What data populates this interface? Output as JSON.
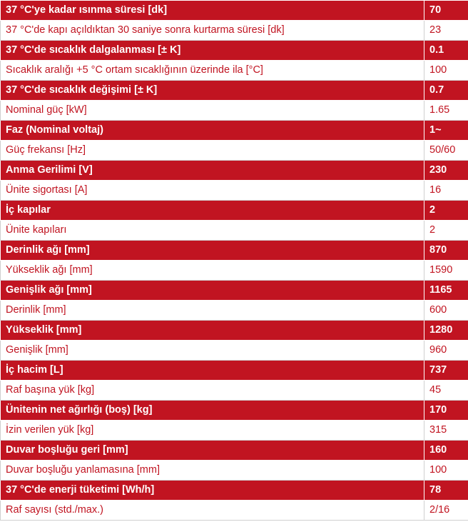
{
  "colors": {
    "accent_red": "#c11421",
    "row_light": "#ffffff",
    "text_on_red": "#ffffff"
  },
  "spec_table": {
    "rows": [
      {
        "label": "37 °C'ye kadar ısınma süresi [dk]",
        "value": "70"
      },
      {
        "label": "37 °C'de kapı açıldıktan 30 saniye sonra kurtarma süresi [dk]",
        "value": "23"
      },
      {
        "label": "37 °C'de sıcaklık dalgalanması [± K]",
        "value": "0.1"
      },
      {
        "label": "Sıcaklık aralığı +5 °C ortam sıcaklığının üzerinde ila [°C]",
        "value": "100"
      },
      {
        "label": "37 °C'de sıcaklık değişimi [± K]",
        "value": "0.7"
      },
      {
        "label": "Nominal güç [kW]",
        "value": "1.65"
      },
      {
        "label": "Faz (Nominal voltaj)",
        "value": "1~"
      },
      {
        "label": "Güç frekansı [Hz]",
        "value": "50/60"
      },
      {
        "label": "Anma Gerilimi [V]",
        "value": "230"
      },
      {
        "label": "Ünite sigortası [A]",
        "value": "16"
      },
      {
        "label": "İç kapılar",
        "value": "2"
      },
      {
        "label": "Ünite kapıları",
        "value": "2"
      },
      {
        "label": "Derinlik ağı [mm]",
        "value": "870"
      },
      {
        "label": "Yükseklik ağı [mm]",
        "value": "1590"
      },
      {
        "label": "Genişlik ağı [mm]",
        "value": "1165"
      },
      {
        "label": "Derinlik [mm]",
        "value": "600"
      },
      {
        "label": "Yükseklik [mm]",
        "value": "1280"
      },
      {
        "label": "Genişlik [mm]",
        "value": "960"
      },
      {
        "label": "İç hacim [L]",
        "value": "737"
      },
      {
        "label": "Raf başına yük [kg]",
        "value": "45"
      },
      {
        "label": "Ünitenin net ağırlığı (boş) [kg]",
        "value": "170"
      },
      {
        "label": "İzin verilen yük [kg]",
        "value": "315"
      },
      {
        "label": "Duvar boşluğu geri [mm]",
        "value": "160"
      },
      {
        "label": "Duvar boşluğu yanlamasına [mm]",
        "value": "100"
      },
      {
        "label": "37 °C'de enerji tüketimi [Wh/h]",
        "value": "78"
      },
      {
        "label": "Raf sayısı (std./max.)",
        "value": "2/16"
      }
    ]
  }
}
